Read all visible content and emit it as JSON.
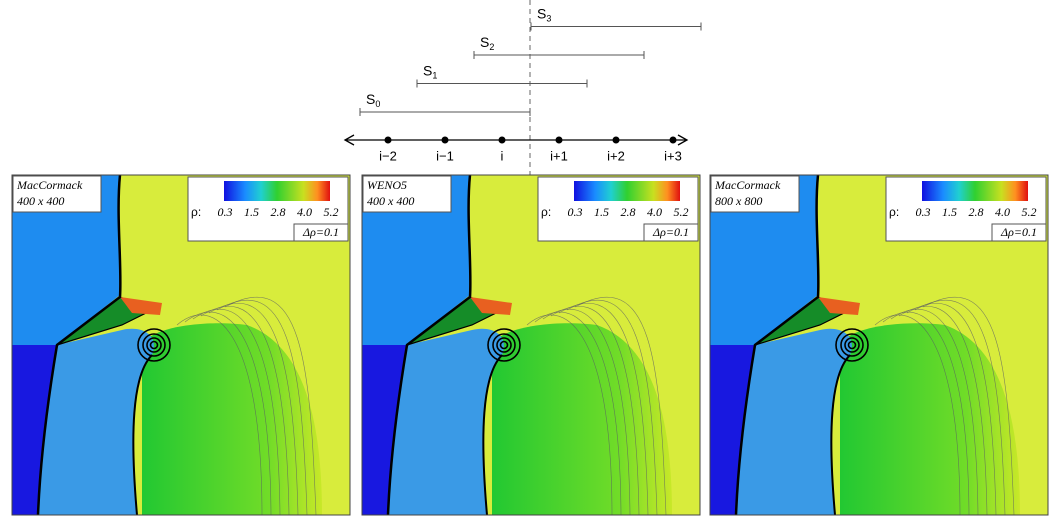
{
  "stencil": {
    "stencils": [
      {
        "name": "S",
        "index": "0"
      },
      {
        "name": "S",
        "index": "1"
      },
      {
        "name": "S",
        "index": "2"
      },
      {
        "name": "S",
        "index": "3"
      }
    ],
    "points": [
      "i−2",
      "i−1",
      "i",
      "i+1",
      "i+2",
      "i+3"
    ]
  },
  "panels": [
    {
      "method": "MacCormack",
      "grid": "400 x 400"
    },
    {
      "method": "WENO5",
      "grid": "400 x 400"
    },
    {
      "method": "MacCormack",
      "grid": "800 x 800"
    }
  ],
  "colorbar": {
    "label": "ρ:",
    "ticks": [
      "0.3",
      "1.5",
      "2.8",
      "4.0",
      "5.2"
    ],
    "spacing": "Δρ=0.1"
  }
}
